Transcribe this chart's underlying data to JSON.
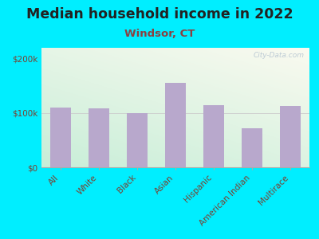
{
  "title": "Median household income in 2022",
  "subtitle": "Windsor, CT",
  "categories": [
    "All",
    "White",
    "Black",
    "Asian",
    "Hispanic",
    "American Indian",
    "Multirace"
  ],
  "values": [
    110000,
    108000,
    100000,
    155000,
    115000,
    72000,
    113000
  ],
  "bar_color": "#b8a8cc",
  "background_outer": "#00eeff",
  "title_color": "#222222",
  "subtitle_color": "#8b4040",
  "tick_label_color": "#7a4030",
  "ytick_labels": [
    "$0",
    "$100k",
    "$200k"
  ],
  "ytick_values": [
    0,
    100000,
    200000
  ],
  "ylim": [
    0,
    220000
  ],
  "watermark": "City-Data.com",
  "title_fontsize": 12.5,
  "subtitle_fontsize": 9.5,
  "tick_fontsize": 7.5,
  "gradient_top_left": "#c8eed8",
  "gradient_bottom_right": "#f5f5ee"
}
